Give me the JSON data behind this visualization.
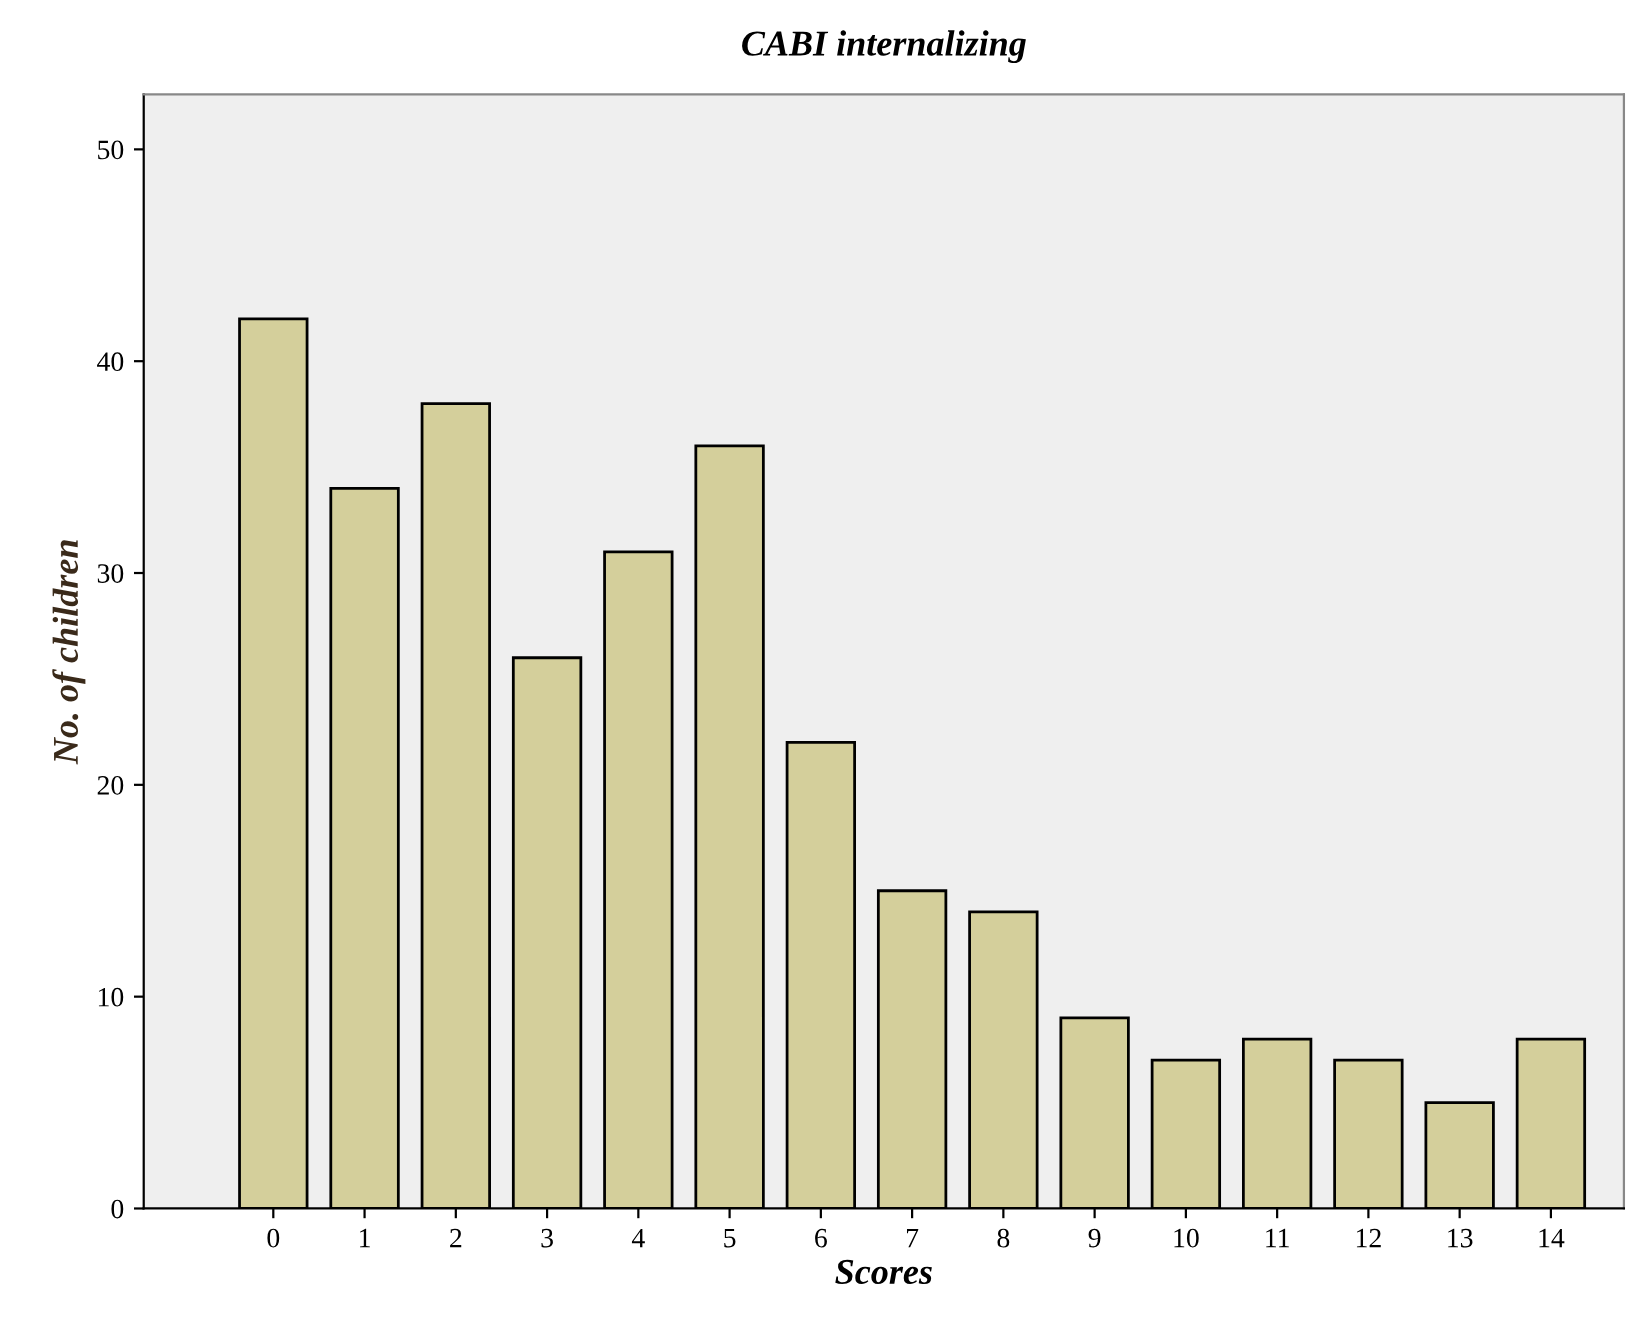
{
  "chart_data": {
    "type": "bar",
    "title": "CABI internalizing",
    "xlabel": "Scores",
    "ylabel": "No. of children",
    "categories": [
      "0",
      "1",
      "2",
      "3",
      "4",
      "5",
      "6",
      "7",
      "8",
      "9",
      "10",
      "11",
      "12",
      "13",
      "14"
    ],
    "values": [
      42,
      34,
      38,
      26,
      31,
      36,
      22,
      15,
      14,
      9,
      7,
      8,
      7,
      5,
      8
    ],
    "color": "#d4cf9b",
    "ylim": [
      0,
      52.6
    ],
    "yticks": [
      0,
      10,
      20,
      30,
      40,
      50
    ],
    "grid": false,
    "legend": false
  }
}
